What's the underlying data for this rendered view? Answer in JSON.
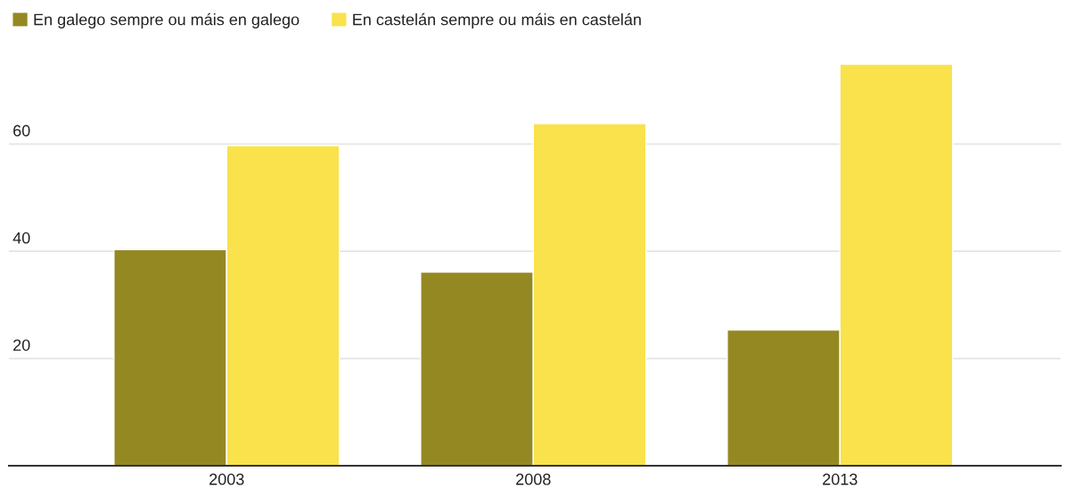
{
  "chart_data": {
    "type": "bar",
    "categories": [
      "2003",
      "2008",
      "2013"
    ],
    "series": [
      {
        "name": "En galego sempre ou máis en galego",
        "color": "#948823",
        "values": [
          40.3,
          36.1,
          25.3
        ]
      },
      {
        "name": "En castelán sempre ou máis en castelán",
        "color": "#f9e24b",
        "values": [
          59.7,
          63.8,
          74.9
        ]
      }
    ],
    "ylim": [
      0,
      74.9
    ],
    "yticks": [
      20,
      40,
      60
    ],
    "grid": "y",
    "legend": "top left"
  }
}
